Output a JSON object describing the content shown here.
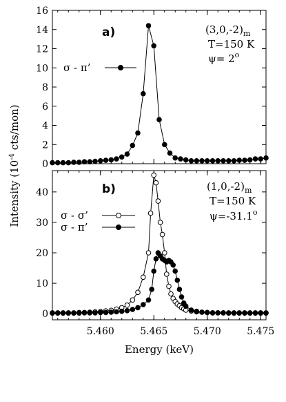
{
  "chart_data": [
    {
      "type": "line",
      "panel_label": "a)",
      "annotation": [
        "(3,0,-2)",
        "m",
        "T=150 K",
        "ψ= 2",
        "o"
      ],
      "ylim": [
        0,
        16
      ],
      "yticks": [
        "0",
        "2",
        "4",
        "6",
        "8",
        "10",
        "12",
        "14",
        "16"
      ],
      "xlim": [
        5.4555,
        5.4755
      ],
      "series": [
        {
          "name": "σ - π’",
          "marker": "filled",
          "x": [
            5.4555,
            5.456,
            5.4565,
            5.457,
            5.4575,
            5.458,
            5.4585,
            5.459,
            5.4595,
            5.46,
            5.4605,
            5.461,
            5.4615,
            5.462,
            5.4625,
            5.463,
            5.4635,
            5.464,
            5.4645,
            5.465,
            5.4655,
            5.466,
            5.4665,
            5.467,
            5.4675,
            5.468,
            5.4685,
            5.469,
            5.4695,
            5.47,
            5.4705,
            5.471,
            5.4715,
            5.472,
            5.4725,
            5.473,
            5.4735,
            5.474,
            5.4745,
            5.475,
            5.4755
          ],
          "values": [
            0.1,
            0.1,
            0.1,
            0.1,
            0.15,
            0.15,
            0.2,
            0.2,
            0.25,
            0.3,
            0.35,
            0.4,
            0.5,
            0.7,
            1.0,
            1.9,
            3.2,
            7.3,
            14.4,
            12.3,
            4.6,
            2.0,
            1.1,
            0.6,
            0.5,
            0.4,
            0.3,
            0.3,
            0.3,
            0.3,
            0.3,
            0.3,
            0.3,
            0.3,
            0.3,
            0.35,
            0.35,
            0.4,
            0.5,
            0.5,
            0.6
          ]
        }
      ]
    },
    {
      "type": "line",
      "panel_label": "b)",
      "annotation": [
        "(1,0,-2)",
        "m",
        "T=150 K",
        "ψ=-31.1",
        "o"
      ],
      "ylim": [
        -2,
        47
      ],
      "yticks": [
        "0",
        "10",
        "20",
        "30",
        "40"
      ],
      "xlim": [
        5.4555,
        5.4755
      ],
      "xticks": [
        "5.460",
        "5.465",
        "5.470",
        "5.475"
      ],
      "xlabel": "Energy (keV)",
      "series": [
        {
          "name": "σ - σ’",
          "marker": "open",
          "x": [
            5.4555,
            5.456,
            5.4565,
            5.457,
            5.4575,
            5.458,
            5.4585,
            5.459,
            5.4595,
            5.46,
            5.4605,
            5.461,
            5.4615,
            5.462,
            5.4625,
            5.463,
            5.4635,
            5.464,
            5.4645,
            5.4647,
            5.465,
            5.4652,
            5.4654,
            5.4656,
            5.4658,
            5.466,
            5.4662,
            5.4664,
            5.4666,
            5.4668,
            5.467,
            5.4672,
            5.4674,
            5.4676,
            5.4678,
            5.468,
            5.4685,
            5.469,
            5.4695,
            5.47,
            5.4705,
            5.471,
            5.4715,
            5.472,
            5.4725,
            5.473,
            5.4735,
            5.474,
            5.4745,
            5.475,
            5.4755
          ],
          "values": [
            0.3,
            0.3,
            0.3,
            0.3,
            0.3,
            0.4,
            0.4,
            0.5,
            0.6,
            0.7,
            0.9,
            1.1,
            1.5,
            2.0,
            2.8,
            4.5,
            7.0,
            12.0,
            20.0,
            33.0,
            45.5,
            43.0,
            37.0,
            30.0,
            26.0,
            20.0,
            13.0,
            9.0,
            6.5,
            5.0,
            4.0,
            3.2,
            2.6,
            2.0,
            1.6,
            1.2,
            0.9,
            0.6,
            0.5,
            0.4,
            0.3,
            0.3,
            0.3,
            0.3,
            0.3,
            0.3,
            0.3,
            0.3,
            0.3,
            0.3,
            0.3
          ]
        },
        {
          "name": "σ - π’",
          "marker": "filled",
          "x": [
            5.4555,
            5.456,
            5.4565,
            5.457,
            5.4575,
            5.458,
            5.4585,
            5.459,
            5.4595,
            5.46,
            5.4605,
            5.461,
            5.4615,
            5.462,
            5.4625,
            5.463,
            5.4635,
            5.464,
            5.4645,
            5.4648,
            5.465,
            5.4652,
            5.4654,
            5.4656,
            5.4658,
            5.466,
            5.4662,
            5.4664,
            5.4666,
            5.4668,
            5.467,
            5.4672,
            5.4674,
            5.4676,
            5.4678,
            5.468,
            5.4685,
            5.469,
            5.4695,
            5.47,
            5.4705,
            5.471,
            5.4715,
            5.472,
            5.4725,
            5.473,
            5.4735,
            5.474,
            5.4745,
            5.475,
            5.4755
          ],
          "values": [
            0.2,
            0.2,
            0.2,
            0.2,
            0.2,
            0.2,
            0.3,
            0.3,
            0.3,
            0.4,
            0.4,
            0.5,
            0.6,
            0.8,
            1.0,
            1.4,
            2.0,
            3.0,
            4.5,
            8.0,
            14.0,
            18.0,
            20.0,
            19.0,
            18.0,
            17.5,
            17.0,
            17.5,
            17.0,
            16.0,
            14.0,
            11.0,
            8.0,
            5.5,
            3.5,
            2.5,
            1.2,
            0.8,
            0.5,
            0.4,
            0.3,
            0.3,
            0.3,
            0.2,
            0.2,
            0.2,
            0.2,
            0.2,
            0.2,
            0.2,
            0.2
          ]
        }
      ]
    }
  ],
  "ylabel": "Intensity (10",
  "ylabel_sup": "-4",
  "ylabel_tail": " cts/mon)"
}
